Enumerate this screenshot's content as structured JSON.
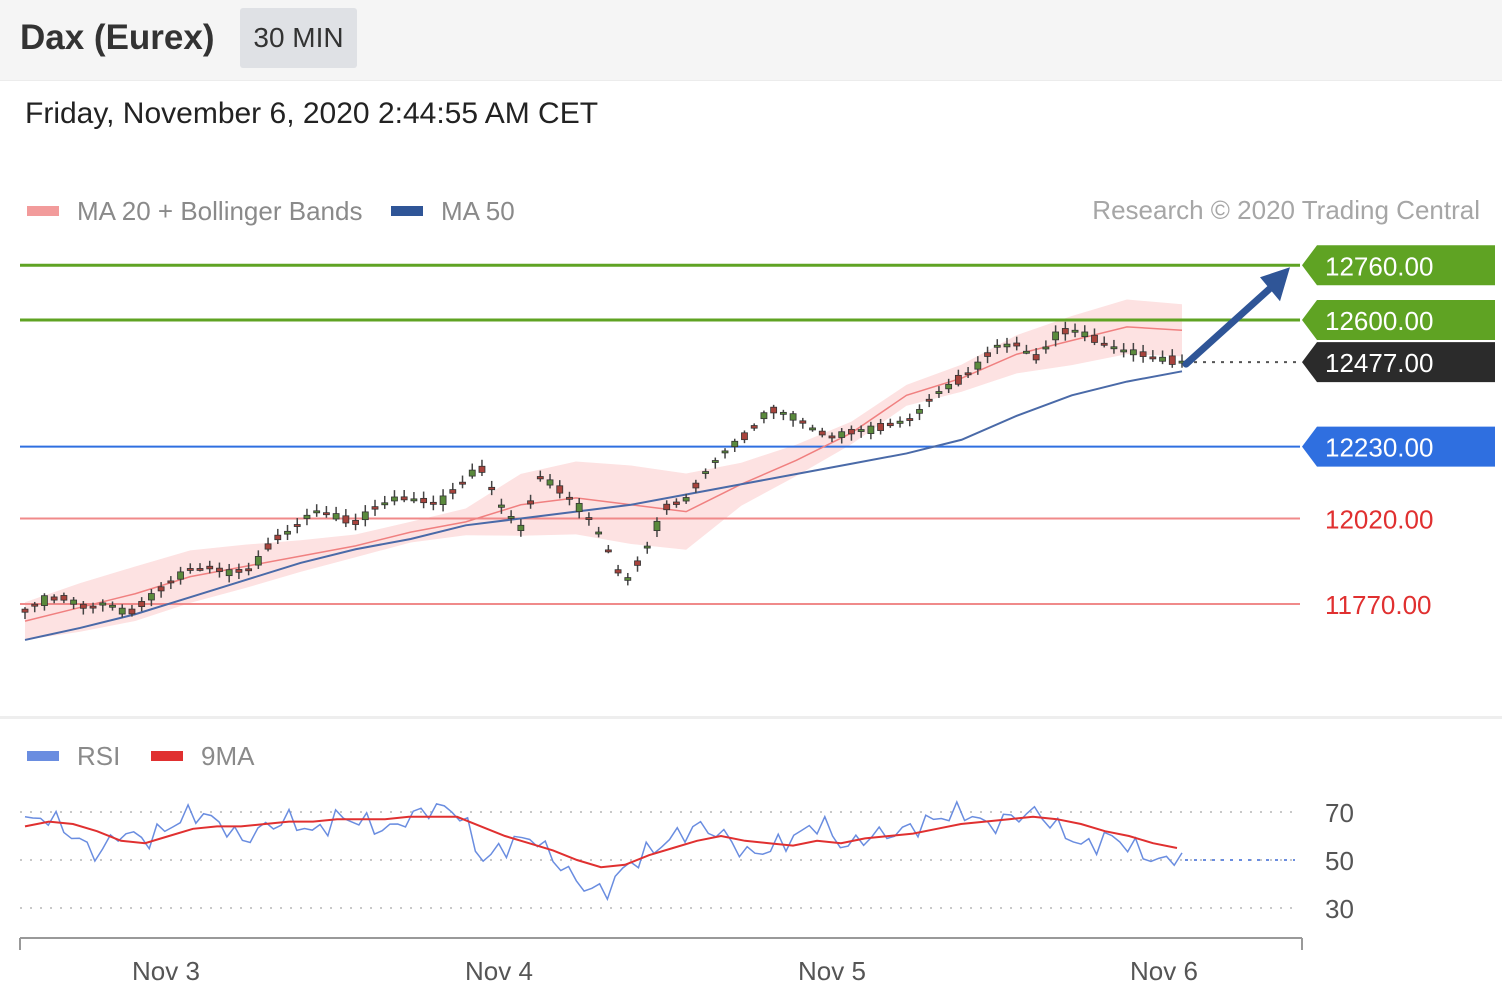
{
  "header": {
    "title": "Dax (Eurex)",
    "interval_label": "30 MIN"
  },
  "timestamp": "Friday, November 6, 2020 2:44:55 AM CET",
  "legend": {
    "items": [
      {
        "label": "MA 20 + Bollinger Bands",
        "color": "#f08080"
      },
      {
        "label": "MA 50",
        "color": "#2f5597"
      }
    ],
    "copyright": "Research © 2020 Trading Central"
  },
  "rsi_legend": {
    "items": [
      {
        "label": "RSI",
        "color": "#6a8de0"
      },
      {
        "label": "9MA",
        "color": "#e03030"
      }
    ]
  },
  "colors": {
    "resistance": "#5fa323",
    "support": "#f08a8a",
    "support_text": "#e03030",
    "pivot": "#2f6fe0",
    "current": "#2b2b2b",
    "arrow": "#2f5597",
    "candle_up": "#5a8a3c",
    "candle_down": "#a8433c",
    "bollinger_fill": "#fde2e2",
    "ma20": "#f08080",
    "ma50": "#4a6aa8",
    "rsi": "#6a8de0",
    "rsi_ma": "#e03030"
  },
  "chart_data": [
    {
      "type": "line",
      "title": "",
      "x_ticks": [
        "Nov 3",
        "Nov 4",
        "Nov 5",
        "Nov 6"
      ],
      "ylim": [
        11620,
        12900
      ],
      "levels": [
        {
          "value": 12760.0,
          "label": "12760.00",
          "kind": "resistance"
        },
        {
          "value": 12600.0,
          "label": "12600.00",
          "kind": "resistance"
        },
        {
          "value": 12477.0,
          "label": "12477.00",
          "kind": "current"
        },
        {
          "value": 12230.0,
          "label": "12230.00",
          "kind": "pivot"
        },
        {
          "value": 12020.0,
          "label": "12020.00",
          "kind": "support"
        },
        {
          "value": 11770.0,
          "label": "11770.00",
          "kind": "support"
        }
      ],
      "series": [
        {
          "name": "MA 20",
          "values": [
            11720,
            11760,
            11800,
            11850,
            11880,
            11910,
            11940,
            11980,
            12010,
            12060,
            12080,
            12060,
            12040,
            12120,
            12190,
            12270,
            12380,
            12430,
            12500,
            12540,
            12580,
            12570
          ]
        },
        {
          "name": "MA 50",
          "values": [
            11665,
            11700,
            11740,
            11790,
            11840,
            11890,
            11930,
            11960,
            12000,
            12020,
            12040,
            12060,
            12090,
            12120,
            12150,
            12180,
            12210,
            12250,
            12320,
            12380,
            12420,
            12450
          ]
        }
      ],
      "price_path": [
        11750,
        11780,
        11790,
        11760,
        11770,
        11740,
        11790,
        11830,
        11870,
        11880,
        11860,
        11870,
        11960,
        11990,
        12040,
        12030,
        12010,
        12050,
        12080,
        12080,
        12060,
        12110,
        12180,
        12060,
        11990,
        12150,
        12100,
        12040,
        11960,
        11830,
        11920,
        12050,
        12080,
        12160,
        12220,
        12270,
        12340,
        12320,
        12290,
        12260,
        12270,
        12280,
        12300,
        12310,
        12380,
        12420,
        12460,
        12520,
        12530,
        12490,
        12560,
        12570,
        12540,
        12510,
        12500,
        12490,
        12477
      ]
    },
    {
      "type": "line",
      "title": "RSI",
      "ylim": [
        20,
        80
      ],
      "y_ticks": [
        70,
        50,
        30
      ],
      "x_ticks": [
        "Nov 3",
        "Nov 4",
        "Nov 5",
        "Nov 6"
      ],
      "series": [
        {
          "name": "RSI",
          "values": [
            66,
            68,
            60,
            52,
            62,
            58,
            64,
            70,
            66,
            58,
            64,
            67,
            61,
            68,
            66,
            62,
            68,
            72,
            70,
            50,
            56,
            60,
            50,
            40,
            36,
            48,
            54,
            60,
            64,
            60,
            52,
            55,
            60,
            66,
            55,
            60,
            61,
            64,
            68,
            70,
            64,
            68,
            70,
            62,
            55,
            60,
            55,
            49,
            52
          ]
        },
        {
          "name": "9MA",
          "values": [
            64,
            66,
            65,
            62,
            58,
            57,
            60,
            63,
            64,
            64,
            65,
            66,
            66,
            67,
            67,
            67,
            68,
            68,
            68,
            64,
            60,
            57,
            54,
            50,
            47,
            48,
            52,
            55,
            58,
            60,
            58,
            57,
            56,
            58,
            57,
            59,
            60,
            61,
            63,
            65,
            66,
            67,
            68,
            67,
            65,
            62,
            60,
            57,
            55
          ]
        }
      ]
    }
  ]
}
